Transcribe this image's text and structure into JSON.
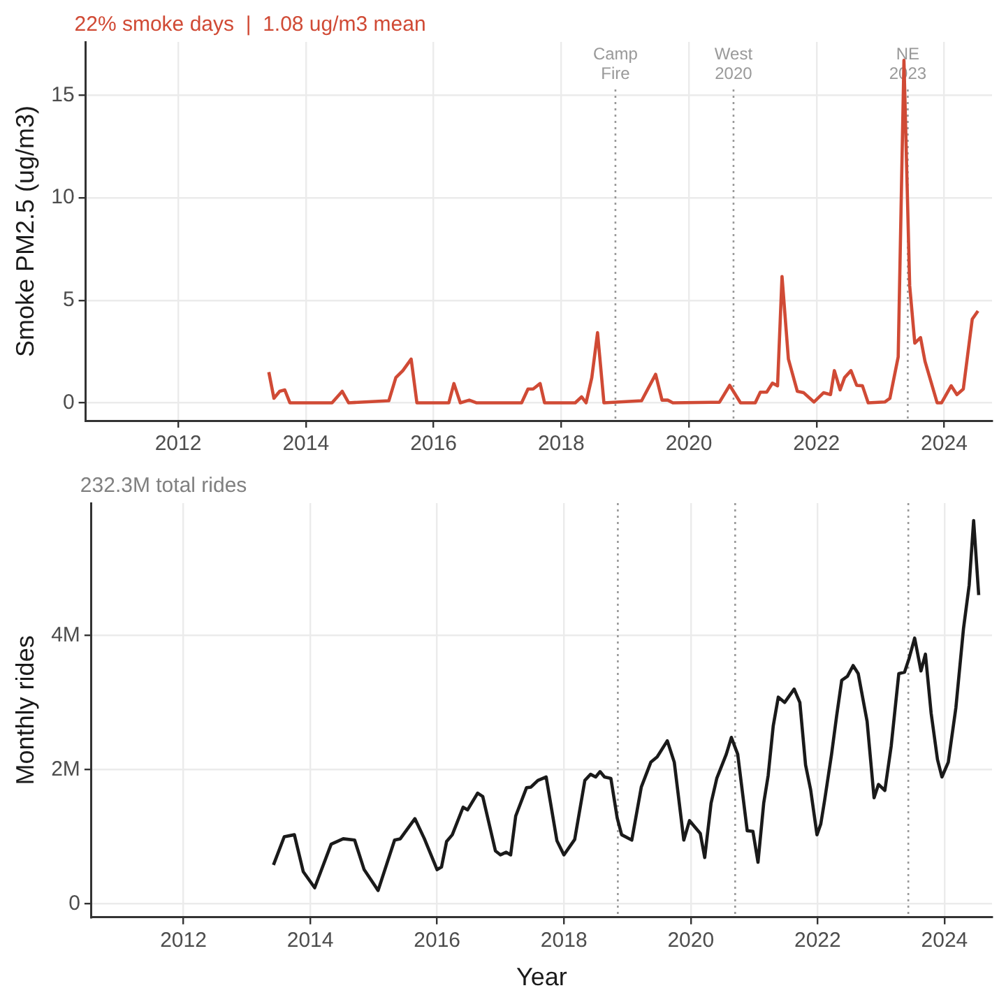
{
  "chart_data": [
    {
      "type": "line",
      "title": "22% smoke days  |  1.08 ug/m3 mean",
      "ylabel": "Smoke PM2.5 (ug/m3)",
      "color": "#d04a35",
      "grid": true,
      "xlim": [
        2010.55,
        2024.75
      ],
      "xticks": [
        2012,
        2014,
        2016,
        2018,
        2020,
        2022,
        2024
      ],
      "ylim": [
        -0.87,
        17.6
      ],
      "yticks": [
        0,
        5,
        10,
        15
      ],
      "x": [
        2013.42,
        2013.5,
        2013.59,
        2013.67,
        2013.75,
        2014.41,
        2014.57,
        2014.67,
        2015.3,
        2015.41,
        2015.52,
        2015.65,
        2015.74,
        2016.24,
        2016.32,
        2016.42,
        2016.56,
        2016.67,
        2017.38,
        2017.48,
        2017.56,
        2017.67,
        2017.74,
        2018.22,
        2018.32,
        2018.39,
        2018.48,
        2018.57,
        2018.67,
        2019.26,
        2019.48,
        2019.58,
        2019.67,
        2019.75,
        2020.48,
        2020.64,
        2020.81,
        2021.04,
        2021.12,
        2021.22,
        2021.31,
        2021.39,
        2021.46,
        2021.56,
        2021.7,
        2021.8,
        2021.96,
        2022.11,
        2022.22,
        2022.28,
        2022.37,
        2022.44,
        2022.54,
        2022.63,
        2022.72,
        2022.81,
        2023.07,
        2023.15,
        2023.28,
        2023.37,
        2023.46,
        2023.54,
        2023.63,
        2023.7,
        2023.89,
        2023.96,
        2024.11,
        2024.2,
        2024.3,
        2024.44,
        2024.53
      ],
      "values": [
        1.5,
        0.22,
        0.56,
        0.63,
        0,
        0,
        0.56,
        0,
        0.1,
        1.23,
        1.57,
        2.13,
        0,
        0,
        0.94,
        0,
        0.13,
        0,
        0,
        0.67,
        0.67,
        0.94,
        0,
        0,
        0.29,
        0,
        1.23,
        3.42,
        0,
        0.1,
        1.39,
        0.13,
        0.13,
        0,
        0.03,
        0.85,
        0,
        0,
        0.52,
        0.52,
        0.96,
        0.83,
        6.16,
        2.13,
        0.56,
        0.49,
        0.04,
        0.49,
        0.4,
        1.57,
        0.63,
        1.23,
        1.57,
        0.85,
        0.83,
        0,
        0.04,
        0.22,
        2.24,
        16.7,
        5.71,
        2.91,
        3.18,
        2.02,
        0,
        0,
        0.83,
        0.4,
        0.67,
        4.08,
        4.48
      ],
      "ref_lines": [
        {
          "axis": "x",
          "value": 2018.85,
          "label": "Camp Fire",
          "color": "#999999",
          "line_style": "dotted"
        },
        {
          "axis": "x",
          "value": 2020.7,
          "label": "West 2020",
          "color": "#999999",
          "line_style": "dotted"
        },
        {
          "axis": "x",
          "value": 2023.43,
          "label": "NE 2023",
          "color": "#999999",
          "line_style": "dotted"
        }
      ]
    },
    {
      "type": "line",
      "subtitle": "232.3M total rides",
      "xlabel": "Year",
      "ylabel": "Monthly rides",
      "color": "#1a1a1a",
      "grid": true,
      "xlim": [
        2010.55,
        2024.75
      ],
      "xticks": [
        2012,
        2014,
        2016,
        2018,
        2020,
        2022,
        2024
      ],
      "ylim": [
        -0.2,
        5.97
      ],
      "yticks": [
        0,
        {
          "value": 2,
          "label": "2M"
        },
        {
          "value": 4,
          "label": "4M"
        }
      ],
      "x": [
        2013.42,
        2013.59,
        2013.75,
        2013.89,
        2014.07,
        2014.33,
        2014.52,
        2014.7,
        2014.85,
        2015.07,
        2015.33,
        2015.42,
        2015.65,
        2015.8,
        2016.0,
        2016.07,
        2016.15,
        2016.24,
        2016.41,
        2016.48,
        2016.64,
        2016.72,
        2016.92,
        2017.0,
        2017.09,
        2017.16,
        2017.24,
        2017.41,
        2017.48,
        2017.59,
        2017.72,
        2017.89,
        2018.0,
        2018.17,
        2018.33,
        2018.42,
        2018.5,
        2018.57,
        2018.64,
        2018.74,
        2018.84,
        2018.91,
        2019.07,
        2019.22,
        2019.37,
        2019.47,
        2019.63,
        2019.74,
        2019.89,
        2019.98,
        2020.15,
        2020.22,
        2020.32,
        2020.41,
        2020.56,
        2020.64,
        2020.74,
        2020.89,
        2020.98,
        2021.06,
        2021.15,
        2021.22,
        2021.3,
        2021.38,
        2021.48,
        2021.63,
        2021.72,
        2021.81,
        2021.89,
        2021.99,
        2022.05,
        2022.11,
        2022.22,
        2022.3,
        2022.38,
        2022.47,
        2022.56,
        2022.64,
        2022.78,
        2022.89,
        2022.96,
        2023.06,
        2023.16,
        2023.28,
        2023.37,
        2023.44,
        2023.53,
        2023.63,
        2023.7,
        2023.79,
        2023.89,
        2023.96,
        2024.06,
        2024.18,
        2024.3,
        2024.39,
        2024.46,
        2024.54
      ],
      "values": [
        0.58,
        1.0,
        1.03,
        0.48,
        0.24,
        0.89,
        0.97,
        0.95,
        0.51,
        0.2,
        0.95,
        0.97,
        1.27,
        0.97,
        0.51,
        0.55,
        0.93,
        1.03,
        1.44,
        1.4,
        1.65,
        1.6,
        0.79,
        0.73,
        0.77,
        0.73,
        1.31,
        1.73,
        1.74,
        1.84,
        1.89,
        0.94,
        0.73,
        0.96,
        1.84,
        1.93,
        1.89,
        1.97,
        1.89,
        1.87,
        1.28,
        1.03,
        0.95,
        1.74,
        2.11,
        2.19,
        2.43,
        2.11,
        0.95,
        1.24,
        1.05,
        0.69,
        1.5,
        1.87,
        2.23,
        2.48,
        2.23,
        1.09,
        1.08,
        0.62,
        1.5,
        1.91,
        2.65,
        3.08,
        3.0,
        3.2,
        3.0,
        2.07,
        1.7,
        1.03,
        1.19,
        1.54,
        2.23,
        2.8,
        3.33,
        3.39,
        3.55,
        3.43,
        2.72,
        1.58,
        1.78,
        1.69,
        2.35,
        3.43,
        3.45,
        3.65,
        3.96,
        3.47,
        3.72,
        2.84,
        2.15,
        1.89,
        2.11,
        2.92,
        4.1,
        4.75,
        5.71,
        4.6
      ],
      "ref_lines": [
        {
          "axis": "x",
          "value": 2018.85,
          "color": "#999999",
          "line_style": "dotted"
        },
        {
          "axis": "x",
          "value": 2020.7,
          "color": "#999999",
          "line_style": "dotted"
        },
        {
          "axis": "x",
          "value": 2023.43,
          "color": "#999999",
          "line_style": "dotted"
        }
      ]
    }
  ]
}
